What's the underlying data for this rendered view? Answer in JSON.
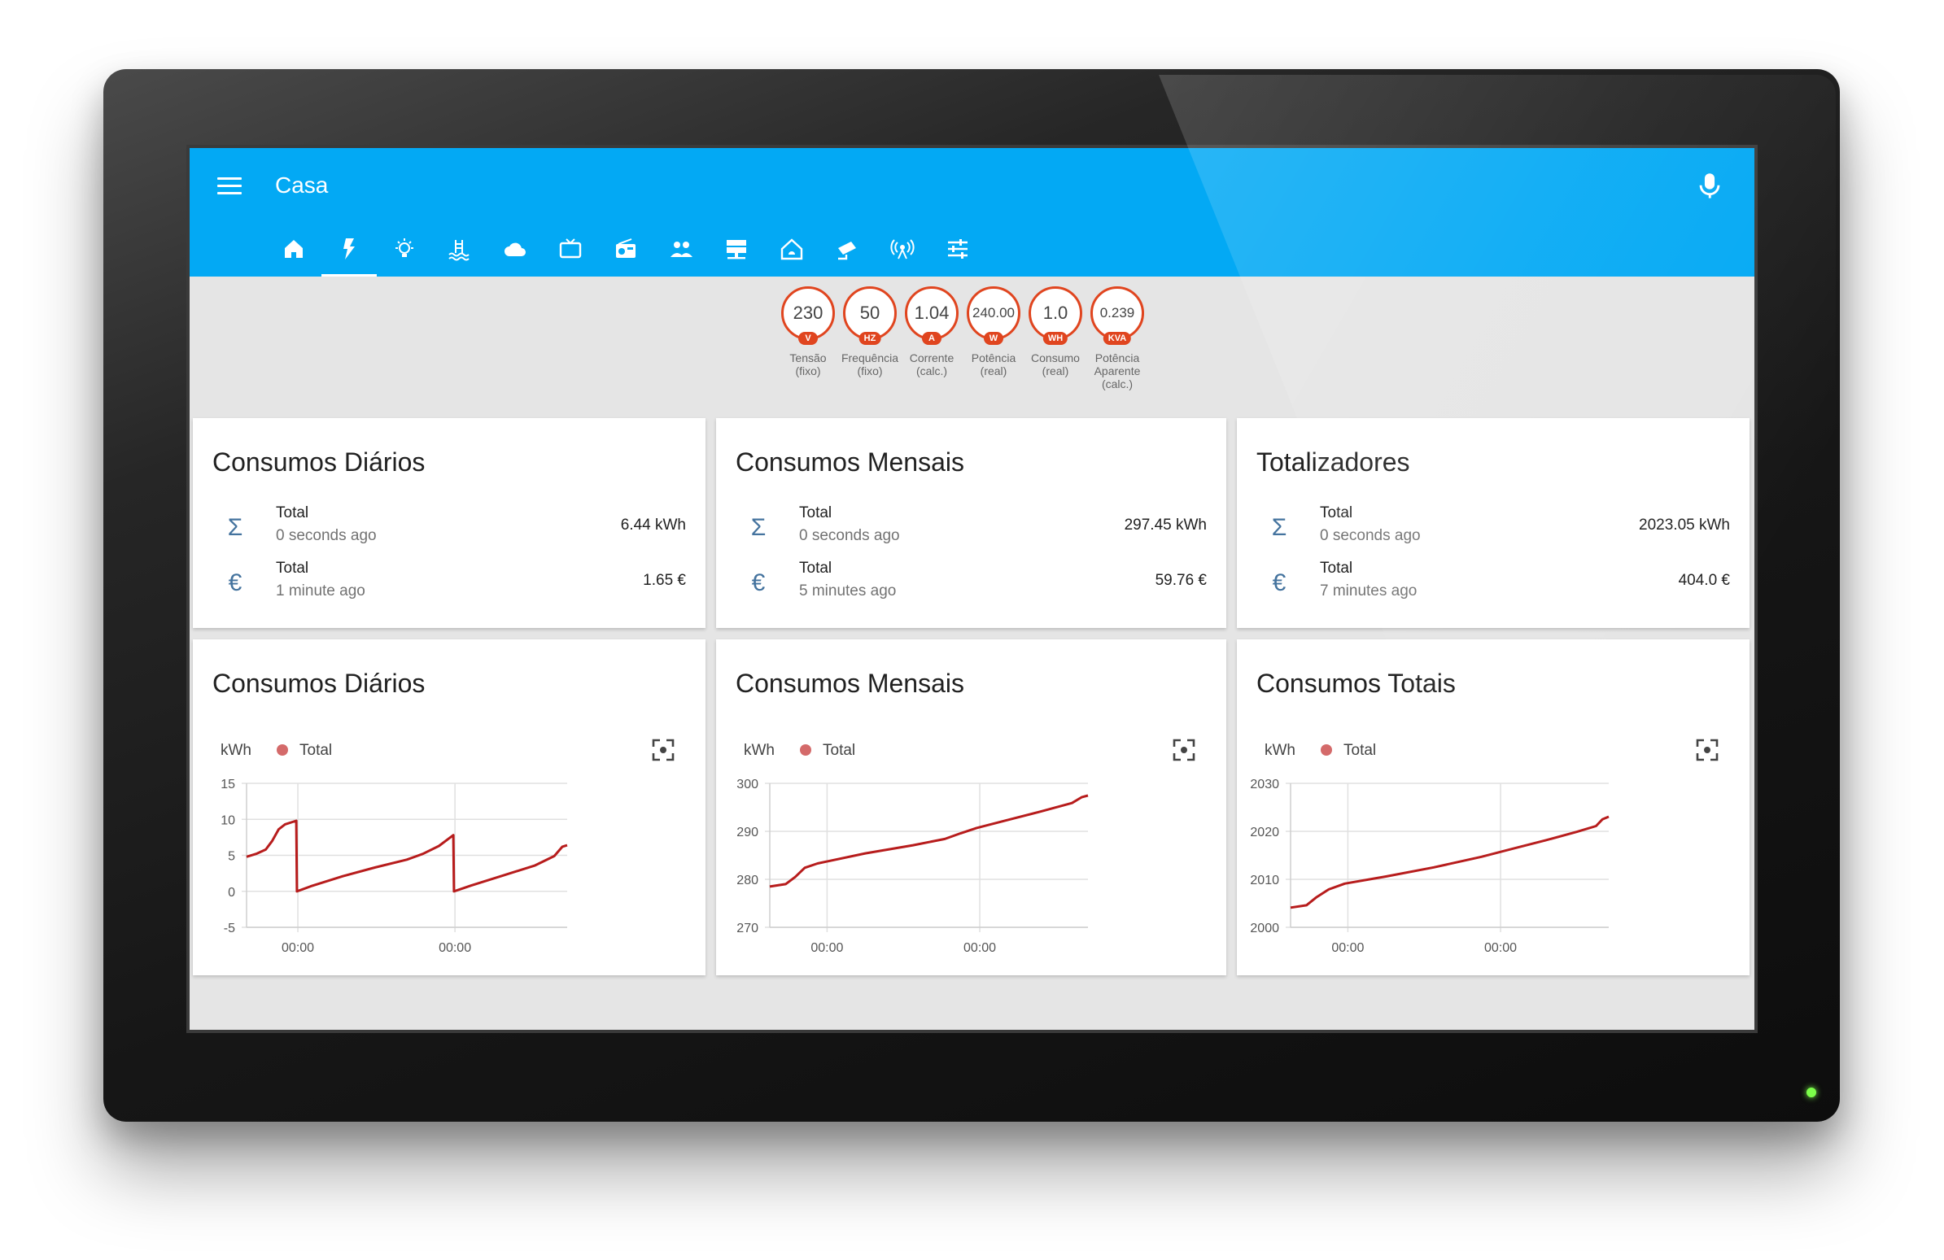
{
  "app": {
    "title": "Casa"
  },
  "tabs": [
    {
      "icon": "home-icon"
    },
    {
      "icon": "flash-icon"
    },
    {
      "icon": "lightbulb-icon"
    },
    {
      "icon": "pool-icon"
    },
    {
      "icon": "cloud-icon"
    },
    {
      "icon": "tv-icon"
    },
    {
      "icon": "radio-icon"
    },
    {
      "icon": "people-icon"
    },
    {
      "icon": "server-icon"
    },
    {
      "icon": "house-alarm-icon"
    },
    {
      "icon": "cctv-icon"
    },
    {
      "icon": "antenna-icon"
    },
    {
      "icon": "sliders-icon"
    }
  ],
  "badges": [
    {
      "value": "230",
      "unit": "V",
      "label1": "Tensão",
      "label2": "(fixo)",
      "label3": ""
    },
    {
      "value": "50",
      "unit": "HZ",
      "label1": "Frequência",
      "label2": "(fixo)",
      "label3": ""
    },
    {
      "value": "1.04",
      "unit": "A",
      "label1": "Corrente",
      "label2": "(calc.)",
      "label3": ""
    },
    {
      "value": "240.00",
      "unit": "W",
      "label1": "Potência",
      "label2": "(real)",
      "label3": ""
    },
    {
      "value": "1.0",
      "unit": "WH",
      "label1": "Consumo",
      "label2": "(real)",
      "label3": ""
    },
    {
      "value": "0.239",
      "unit": "KVA",
      "label1": "Potência",
      "label2": "Aparente",
      "label3": "(calc.)"
    }
  ],
  "cards": [
    {
      "title": "Consumos Diários",
      "rows": [
        {
          "icon": "sigma-icon",
          "name": "Total",
          "time": "0 seconds ago",
          "value": "6.44 kWh"
        },
        {
          "icon": "euro-icon",
          "name": "Total",
          "time": "1 minute ago",
          "value": "1.65 €"
        }
      ]
    },
    {
      "title": "Consumos Mensais",
      "rows": [
        {
          "icon": "sigma-icon",
          "name": "Total",
          "time": "0 seconds ago",
          "value": "297.45 kWh"
        },
        {
          "icon": "euro-icon",
          "name": "Total",
          "time": "5 minutes ago",
          "value": "59.76 €"
        }
      ]
    },
    {
      "title": "Totalizadores",
      "rows": [
        {
          "icon": "sigma-icon",
          "name": "Total",
          "time": "0 seconds ago",
          "value": "2023.05 kWh"
        },
        {
          "icon": "euro-icon",
          "name": "Total",
          "time": "7 minutes ago",
          "value": "404.0 €"
        }
      ]
    }
  ],
  "chart_data": [
    {
      "type": "line",
      "title": "Consumos Diários",
      "ylabel": "kWh",
      "ylim": [
        -5,
        15
      ],
      "yticks": [
        15,
        10,
        5,
        0,
        -5
      ],
      "xticks": [
        "00:00",
        "00:00"
      ],
      "series": [
        {
          "name": "Total",
          "color": "#b71c1c",
          "points": [
            [
              0,
              4.8
            ],
            [
              0.03,
              5.2
            ],
            [
              0.06,
              5.8
            ],
            [
              0.08,
              7
            ],
            [
              0.1,
              8.6
            ],
            [
              0.12,
              9.3
            ],
            [
              0.155,
              9.8
            ],
            [
              0.157,
              0
            ],
            [
              0.2,
              0.7
            ],
            [
              0.3,
              2.1
            ],
            [
              0.4,
              3.3
            ],
            [
              0.5,
              4.4
            ],
            [
              0.55,
              5.2
            ],
            [
              0.6,
              6.3
            ],
            [
              0.645,
              7.8
            ],
            [
              0.647,
              0
            ],
            [
              0.7,
              0.8
            ],
            [
              0.8,
              2.2
            ],
            [
              0.9,
              3.6
            ],
            [
              0.96,
              4.9
            ],
            [
              0.985,
              6.2
            ],
            [
              1,
              6.4
            ]
          ]
        }
      ]
    },
    {
      "type": "line",
      "title": "Consumos Mensais",
      "ylabel": "kWh",
      "ylim": [
        270,
        300
      ],
      "yticks": [
        300,
        290,
        280,
        270
      ],
      "xticks": [
        "00:00",
        "00:00"
      ],
      "series": [
        {
          "name": "Total",
          "color": "#b71c1c",
          "points": [
            [
              0,
              278.5
            ],
            [
              0.05,
              279
            ],
            [
              0.08,
              280.5
            ],
            [
              0.11,
              282.4
            ],
            [
              0.15,
              283.3
            ],
            [
              0.3,
              285.4
            ],
            [
              0.45,
              287.1
            ],
            [
              0.55,
              288.4
            ],
            [
              0.6,
              289.6
            ],
            [
              0.65,
              290.7
            ],
            [
              0.75,
              292.4
            ],
            [
              0.85,
              294.1
            ],
            [
              0.95,
              295.9
            ],
            [
              0.98,
              297.1
            ],
            [
              1,
              297.45
            ]
          ]
        }
      ]
    },
    {
      "type": "line",
      "title": "Consumos Totais",
      "ylabel": "kWh",
      "ylim": [
        2000,
        2030
      ],
      "yticks": [
        2030,
        2020,
        2010,
        2000
      ],
      "xticks": [
        "00:00",
        "00:00"
      ],
      "series": [
        {
          "name": "Total",
          "color": "#b71c1c",
          "points": [
            [
              0,
              2004.1
            ],
            [
              0.05,
              2004.6
            ],
            [
              0.08,
              2006.2
            ],
            [
              0.12,
              2007.9
            ],
            [
              0.17,
              2009.1
            ],
            [
              0.3,
              2010.6
            ],
            [
              0.45,
              2012.5
            ],
            [
              0.6,
              2014.7
            ],
            [
              0.7,
              2016.4
            ],
            [
              0.8,
              2018.1
            ],
            [
              0.9,
              2019.9
            ],
            [
              0.96,
              2021.1
            ],
            [
              0.98,
              2022.5
            ],
            [
              1,
              2023.05
            ]
          ]
        }
      ]
    }
  ]
}
